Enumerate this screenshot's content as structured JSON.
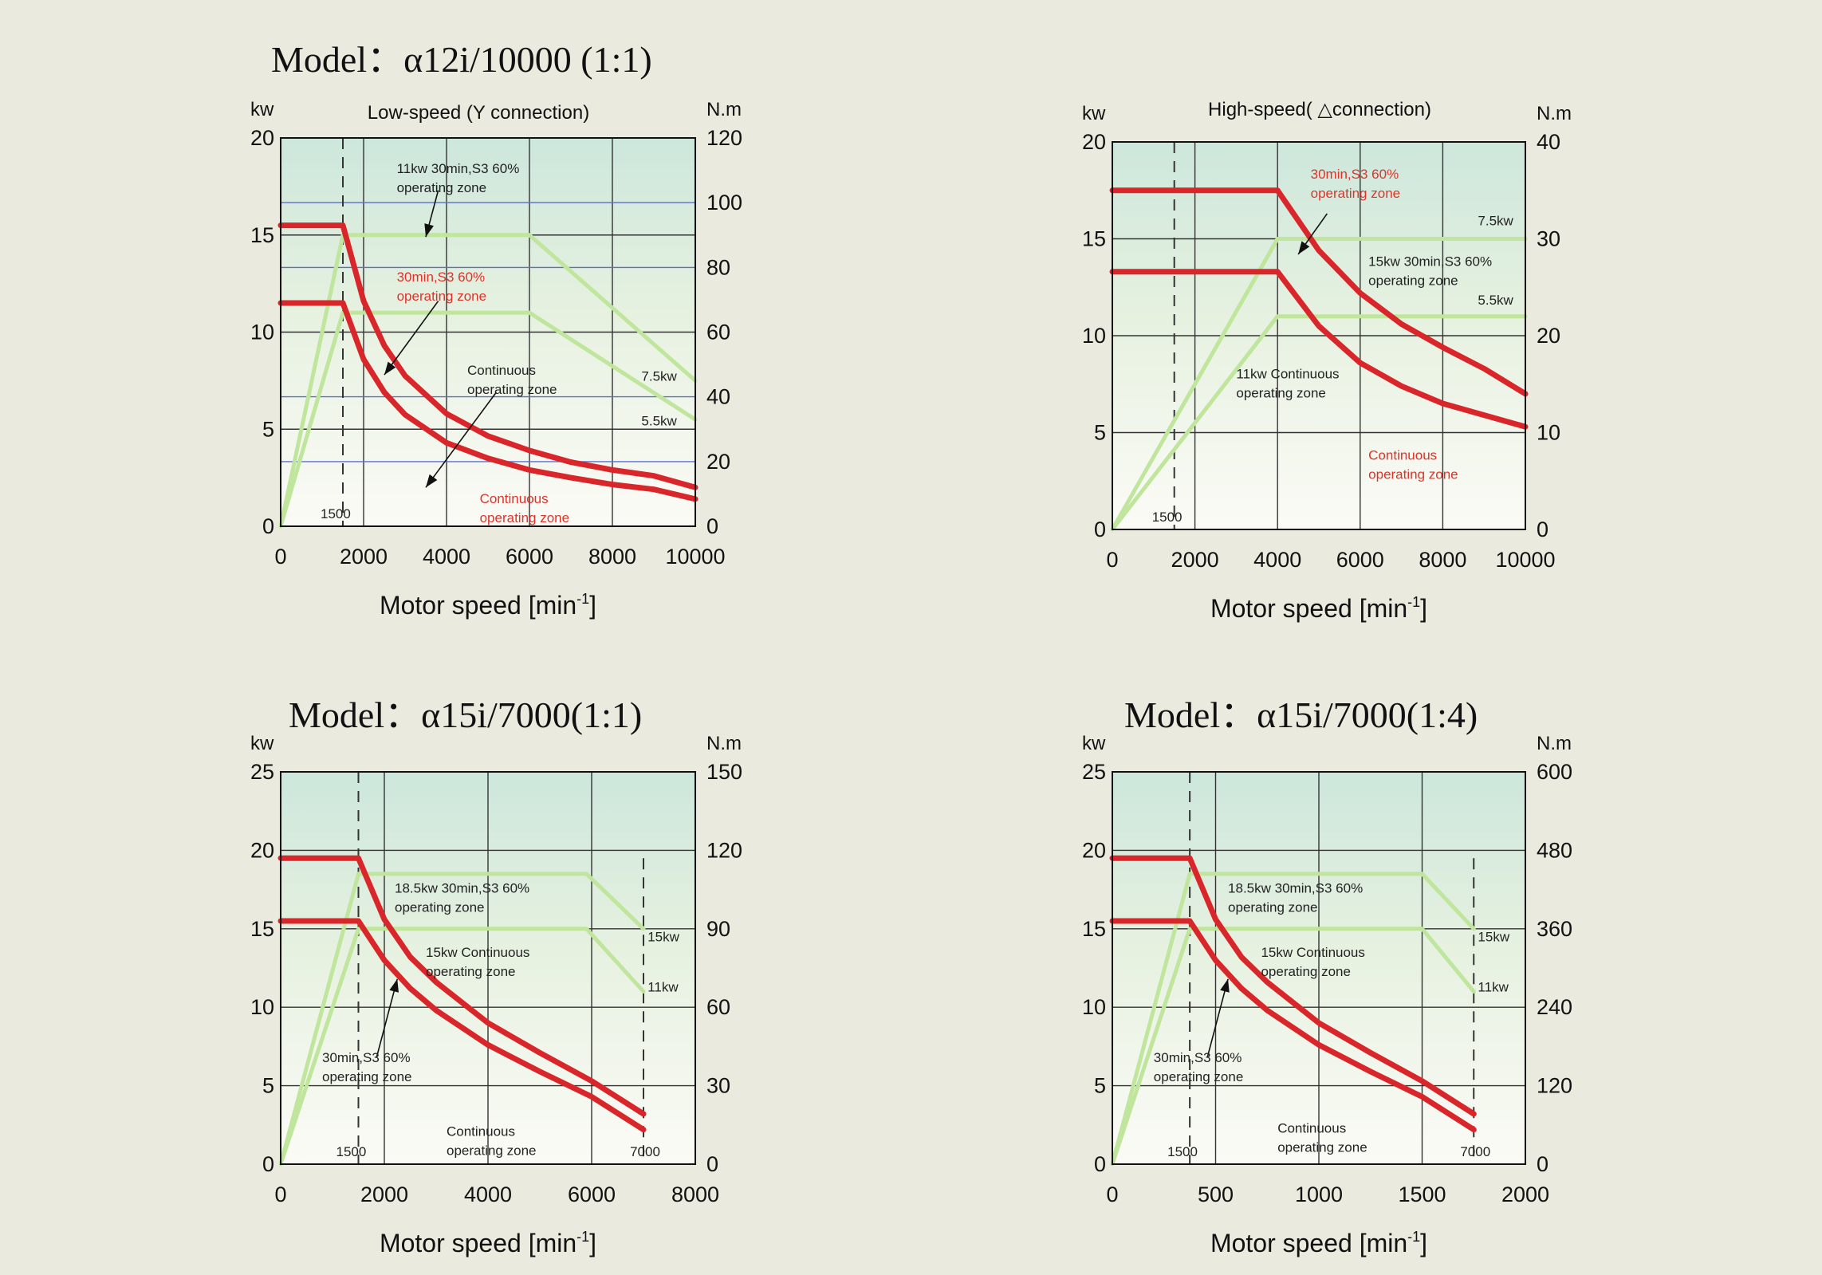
{
  "chart_data": [
    {
      "type": "line",
      "title": "Model：α12i/10000 (1:1)",
      "subtitle": "Low-speed (Y connection)",
      "ylabel_left": "kw",
      "ylabel_right": "N.m",
      "xlabel": "Motor speed [min",
      "xlabel_sup": "-1",
      "xlabel_close": "]",
      "xlim": [
        0,
        10000
      ],
      "ylim_left": [
        0,
        20
      ],
      "ylim_right": [
        0,
        120
      ],
      "x_ticks": [
        "0",
        "2000",
        "4000",
        "6000",
        "8000",
        "10000"
      ],
      "x_tick_values": [
        0,
        2000,
        4000,
        6000,
        8000,
        10000
      ],
      "y_left_ticks": [
        "0",
        "5",
        "10",
        "15",
        "20"
      ],
      "y_right_ticks": [
        "0",
        "20",
        "40",
        "60",
        "80",
        "100",
        "120"
      ],
      "grid": true,
      "base_speed": 1500,
      "base_speed_label": "1500",
      "series": [
        {
          "role": "output-30min",
          "color": "#d9262a",
          "x": [
            0,
            1500,
            1500,
            2000,
            2500,
            3000,
            4000,
            5000,
            6000,
            7000,
            8000,
            9000,
            10000
          ],
          "y": [
            15.5,
            15.5,
            15.5,
            11.6,
            9.3,
            7.75,
            5.8,
            4.65,
            3.9,
            3.3,
            2.9,
            2.6,
            2.0
          ]
        },
        {
          "role": "output-continuous",
          "color": "#d9262a",
          "x": [
            0,
            1500,
            1500,
            2000,
            2500,
            3000,
            4000,
            5000,
            6000,
            7000,
            8000,
            9000,
            10000
          ],
          "y": [
            11.5,
            11.5,
            11.5,
            8.6,
            6.9,
            5.75,
            4.3,
            3.5,
            2.9,
            2.5,
            2.15,
            1.9,
            1.4
          ]
        },
        {
          "role": "torque-30min",
          "color": "#bfe69c",
          "x": [
            0,
            1500,
            6000,
            10000
          ],
          "y": [
            0,
            15,
            15,
            7.5
          ]
        },
        {
          "role": "torque-continuous",
          "color": "#bfe69c",
          "x": [
            0,
            1500,
            6000,
            10000
          ],
          "y": [
            0,
            11,
            11,
            5.5
          ]
        }
      ],
      "blue_lines_y": [
        16.67,
        13.33,
        6.67,
        3.33
      ],
      "annotations": [
        {
          "lines": [
            "11kw 30min,S3 60%",
            "operating zone"
          ],
          "color": "dark",
          "x": 2800,
          "y": 18.2
        },
        {
          "lines": [
            "30min,S3 60%",
            "operating zone"
          ],
          "color": "red",
          "x": 2800,
          "y": 12.6
        },
        {
          "lines": [
            "Continuous",
            "operating zone"
          ],
          "color": "dark",
          "x": 4500,
          "y": 7.8
        },
        {
          "lines": [
            "Continuous",
            "operating zone"
          ],
          "color": "red",
          "x": 4800,
          "y": 1.2
        },
        {
          "lines": [
            "7.5kw"
          ],
          "color": "dark",
          "x": 8700,
          "y": 7.5
        },
        {
          "lines": [
            "5.5kw"
          ],
          "color": "dark",
          "x": 8700,
          "y": 5.2
        }
      ],
      "arrows": [
        {
          "from": [
            3800,
            17.3
          ],
          "to": [
            3500,
            14.9
          ]
        },
        {
          "from": [
            3800,
            11.6
          ],
          "to": [
            2500,
            7.8
          ]
        },
        {
          "from": [
            5200,
            6.9
          ],
          "to": [
            3500,
            2.0
          ]
        }
      ]
    },
    {
      "type": "line",
      "title": "",
      "subtitle": "High-speed( △connection)",
      "ylabel_left": "kw",
      "ylabel_right": "N.m",
      "xlabel": "Motor speed [min",
      "xlabel_sup": "-1",
      "xlabel_close": "]",
      "xlim": [
        0,
        10000
      ],
      "ylim_left": [
        0,
        20
      ],
      "ylim_right": [
        0,
        40
      ],
      "x_ticks": [
        "0",
        "2000",
        "4000",
        "6000",
        "8000",
        "10000"
      ],
      "x_tick_values": [
        0,
        2000,
        4000,
        6000,
        8000,
        10000
      ],
      "y_left_ticks": [
        "0",
        "5",
        "10",
        "15",
        "20"
      ],
      "y_right_ticks": [
        "0",
        "10",
        "20",
        "30",
        "40"
      ],
      "grid": true,
      "base_speed": 1500,
      "base_speed_label": "1500",
      "series": [
        {
          "role": "output-30min",
          "color": "#d9262a",
          "x": [
            0,
            4000,
            4000,
            5000,
            6000,
            7000,
            8000,
            9000,
            10000
          ],
          "y": [
            17.5,
            17.5,
            17.5,
            14.4,
            12.2,
            10.6,
            9.4,
            8.3,
            7.0
          ]
        },
        {
          "role": "output-continuous",
          "color": "#d9262a",
          "x": [
            0,
            4000,
            4000,
            5000,
            6000,
            7000,
            8000,
            9000,
            10000
          ],
          "y": [
            13.3,
            13.3,
            13.3,
            10.5,
            8.6,
            7.4,
            6.5,
            5.9,
            5.3
          ]
        },
        {
          "role": "torque-30min",
          "color": "#bfe69c",
          "x": [
            0,
            4000,
            10000
          ],
          "y": [
            0,
            15,
            15
          ]
        },
        {
          "role": "torque-continuous",
          "color": "#bfe69c",
          "x": [
            0,
            4000,
            10000
          ],
          "y": [
            0,
            11,
            11
          ]
        }
      ],
      "blue_lines_y": [],
      "annotations": [
        {
          "lines": [
            "30min,S3 60%",
            "operating zone"
          ],
          "color": "red",
          "x": 4800,
          "y": 18.1
        },
        {
          "lines": [
            "7.5kw"
          ],
          "color": "dark",
          "x": 8850,
          "y": 15.7
        },
        {
          "lines": [
            "15kw 30min,S3 60%",
            "operating zone"
          ],
          "color": "dark",
          "x": 6200,
          "y": 13.6
        },
        {
          "lines": [
            "5.5kw"
          ],
          "color": "dark",
          "x": 8850,
          "y": 11.6
        },
        {
          "lines": [
            "11kw Continuous",
            "operating zone"
          ],
          "color": "dark",
          "x": 3000,
          "y": 7.8
        },
        {
          "lines": [
            "Continuous",
            "operating zone"
          ],
          "color": "red",
          "x": 6200,
          "y": 3.6
        }
      ],
      "arrows": [
        {
          "from": [
            5200,
            16.3
          ],
          "to": [
            4500,
            14.2
          ]
        }
      ]
    },
    {
      "type": "line",
      "title": "Model：α15i/7000(1:1)",
      "subtitle": "",
      "ylabel_left": "kw",
      "ylabel_right": "N.m",
      "xlabel": "Motor speed [min",
      "xlabel_sup": "-1",
      "xlabel_close": "]",
      "xlim": [
        0,
        8000
      ],
      "ylim_left": [
        0,
        25
      ],
      "ylim_right": [
        0,
        150
      ],
      "x_ticks": [
        "0",
        "2000",
        "4000",
        "6000",
        "8000"
      ],
      "x_tick_values": [
        0,
        2000,
        4000,
        6000,
        8000
      ],
      "y_left_ticks": [
        "0",
        "5",
        "10",
        "15",
        "20",
        "25"
      ],
      "y_right_ticks": [
        "0",
        "30",
        "60",
        "90",
        "120",
        "150"
      ],
      "grid": true,
      "base_speed": 1500,
      "base_speed_label": "1500",
      "max_speed": 7000,
      "max_speed_label": "7000",
      "series": [
        {
          "role": "output-30min",
          "color": "#d9262a",
          "x": [
            0,
            1500,
            1500,
            2000,
            2500,
            3000,
            4000,
            5000,
            6000,
            7000
          ],
          "y": [
            19.5,
            19.5,
            19.5,
            15.6,
            13.2,
            11.6,
            9.0,
            7.1,
            5.3,
            3.2
          ]
        },
        {
          "role": "output-continuous",
          "color": "#d9262a",
          "x": [
            0,
            1500,
            1500,
            2000,
            2500,
            3000,
            4000,
            5000,
            6000,
            7000
          ],
          "y": [
            15.5,
            15.5,
            15.5,
            13.0,
            11.2,
            9.8,
            7.6,
            5.9,
            4.3,
            2.2
          ]
        },
        {
          "role": "torque-30min",
          "color": "#bfe69c",
          "x": [
            0,
            1500,
            5900,
            7000
          ],
          "y": [
            0,
            18.5,
            18.5,
            15
          ]
        },
        {
          "role": "torque-continuous",
          "color": "#bfe69c",
          "x": [
            0,
            1500,
            5900,
            7000
          ],
          "y": [
            0,
            15,
            15,
            11
          ]
        }
      ],
      "blue_lines_y": [],
      "annotations": [
        {
          "lines": [
            "18.5kw 30min,S3 60%",
            "operating zone"
          ],
          "color": "dark",
          "x": 2200,
          "y": 17.3
        },
        {
          "lines": [
            "15kw Continuous",
            "operating zone"
          ],
          "color": "dark",
          "x": 2800,
          "y": 13.2
        },
        {
          "lines": [
            "15kw"
          ],
          "color": "dark",
          "x": 7080,
          "y": 14.2
        },
        {
          "lines": [
            "11kw"
          ],
          "color": "dark",
          "x": 7080,
          "y": 11.0
        },
        {
          "lines": [
            "30min,S3 60%",
            "operating zone"
          ],
          "color": "dark",
          "x": 800,
          "y": 6.5
        },
        {
          "lines": [
            "Continuous",
            "operating zone"
          ],
          "color": "dark",
          "x": 3200,
          "y": 1.8
        }
      ],
      "arrows": [
        {
          "from": [
            1850,
            6.8
          ],
          "to": [
            2250,
            11.8
          ]
        }
      ]
    },
    {
      "type": "line",
      "title": "Model：α15i/7000(1:4)",
      "subtitle": "",
      "ylabel_left": "kw",
      "ylabel_right": "N.m",
      "xlabel": "Motor speed [min",
      "xlabel_sup": "-1",
      "xlabel_close": "]",
      "xlim": [
        0,
        2000
      ],
      "ylim_left": [
        0,
        25
      ],
      "ylim_right": [
        0,
        600
      ],
      "x_ticks": [
        "0",
        "500",
        "1000",
        "1500",
        "2000"
      ],
      "x_tick_values": [
        0,
        500,
        1000,
        1500,
        2000
      ],
      "y_left_ticks": [
        "0",
        "5",
        "10",
        "15",
        "20",
        "25"
      ],
      "y_right_ticks": [
        "0",
        "120",
        "240",
        "360",
        "480",
        "600"
      ],
      "grid": true,
      "base_speed": 375,
      "base_speed_label": "1500",
      "max_speed": 1750,
      "max_speed_label": "7000",
      "series": [
        {
          "role": "output-30min",
          "color": "#d9262a",
          "x": [
            0,
            375,
            375,
            500,
            625,
            750,
            1000,
            1250,
            1500,
            1750
          ],
          "y": [
            19.5,
            19.5,
            19.5,
            15.6,
            13.2,
            11.6,
            9.0,
            7.1,
            5.3,
            3.2
          ]
        },
        {
          "role": "output-continuous",
          "color": "#d9262a",
          "x": [
            0,
            375,
            375,
            500,
            625,
            750,
            1000,
            1250,
            1500,
            1750
          ],
          "y": [
            15.5,
            15.5,
            15.5,
            13.0,
            11.2,
            9.8,
            7.6,
            5.9,
            4.3,
            2.2
          ]
        },
        {
          "role": "torque-30min",
          "color": "#bfe69c",
          "x": [
            0,
            375,
            1500,
            1750
          ],
          "y": [
            0,
            18.5,
            18.5,
            15
          ]
        },
        {
          "role": "torque-continuous",
          "color": "#bfe69c",
          "x": [
            0,
            375,
            1500,
            1750
          ],
          "y": [
            0,
            15,
            15,
            11
          ]
        }
      ],
      "blue_lines_y": [],
      "annotations": [
        {
          "lines": [
            "18.5kw 30min,S3 60%",
            "operating zone"
          ],
          "color": "dark",
          "x": 560,
          "y": 17.3
        },
        {
          "lines": [
            "15kw Continuous",
            "operating zone"
          ],
          "color": "dark",
          "x": 720,
          "y": 13.2
        },
        {
          "lines": [
            "15kw"
          ],
          "color": "dark",
          "x": 1770,
          "y": 14.2
        },
        {
          "lines": [
            "11kw"
          ],
          "color": "dark",
          "x": 1770,
          "y": 11.0
        },
        {
          "lines": [
            "30min,S3 60%",
            "operating zone"
          ],
          "color": "dark",
          "x": 200,
          "y": 6.5
        },
        {
          "lines": [
            "Continuous",
            "operating zone"
          ],
          "color": "dark",
          "x": 800,
          "y": 2.0
        }
      ],
      "arrows": [
        {
          "from": [
            460,
            6.8
          ],
          "to": [
            560,
            11.8
          ]
        }
      ]
    }
  ]
}
